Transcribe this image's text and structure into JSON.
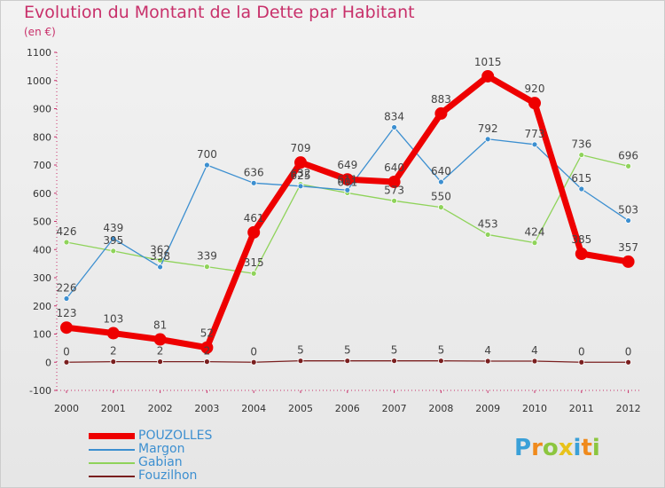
{
  "header": {
    "title": "Evolution du Montant de la Dette par Habitant",
    "subtitle": "(en €)"
  },
  "logo": {
    "text": "Proxiti",
    "colors": [
      "#3aa0d8",
      "#f08a1c",
      "#8cc63f",
      "#e8c21a",
      "#3aa0d8",
      "#f08a1c",
      "#8cc63f"
    ]
  },
  "chart_data": {
    "type": "line",
    "title": "Evolution du Montant de la Dette par Habitant",
    "subtitle": "(en €)",
    "x": [
      "2000",
      "2001",
      "2002",
      "2003",
      "2004",
      "2005",
      "2006",
      "2007",
      "2008",
      "2009",
      "2010",
      "2011",
      "2012"
    ],
    "yticks": [
      "-100",
      "0",
      "100",
      "200",
      "300",
      "400",
      "500",
      "600",
      "700",
      "800",
      "900",
      "1000",
      "1100"
    ],
    "ylim": [
      -100,
      1100
    ],
    "grid": false,
    "legend_position": "bottom-left",
    "series": [
      {
        "name": "POUZOLLES",
        "color": "#ee0000",
        "values": [
          123,
          103,
          81,
          52,
          461,
          709,
          649,
          640,
          883,
          1015,
          920,
          385,
          357
        ],
        "labels": [
          "123",
          "103",
          "81",
          "52",
          "461",
          "709",
          "649",
          "640",
          "883",
          "1015",
          "920",
          "385",
          "357"
        ]
      },
      {
        "name": "Margon",
        "color": "#3c8fd0",
        "values": [
          226,
          439,
          338,
          700,
          636,
          625,
          611,
          834,
          640,
          792,
          773,
          615,
          503
        ],
        "labels": [
          "226",
          "439",
          "338",
          "700",
          "636",
          "625",
          "611",
          "834",
          "640",
          "792",
          "773",
          "615",
          "503"
        ]
      },
      {
        "name": "Gabian",
        "color": "#8fd35a",
        "values": [
          426,
          395,
          362,
          339,
          315,
          632,
          601,
          573,
          550,
          453,
          424,
          736,
          696
        ],
        "labels": [
          "426",
          "395",
          "362",
          "339",
          "315",
          "632",
          "601",
          "573",
          "550",
          "453",
          "424",
          "736",
          "696"
        ]
      },
      {
        "name": "Fouzilhon",
        "color": "#7a1f1f",
        "values": [
          0,
          2,
          2,
          2,
          0,
          5,
          5,
          5,
          5,
          4,
          4,
          0,
          0
        ],
        "labels": [
          "0",
          "2",
          "2",
          "2",
          "0",
          "5",
          "5",
          "5",
          "5",
          "4",
          "4",
          "0",
          "0"
        ]
      }
    ],
    "axis_color": "#c8306a"
  }
}
